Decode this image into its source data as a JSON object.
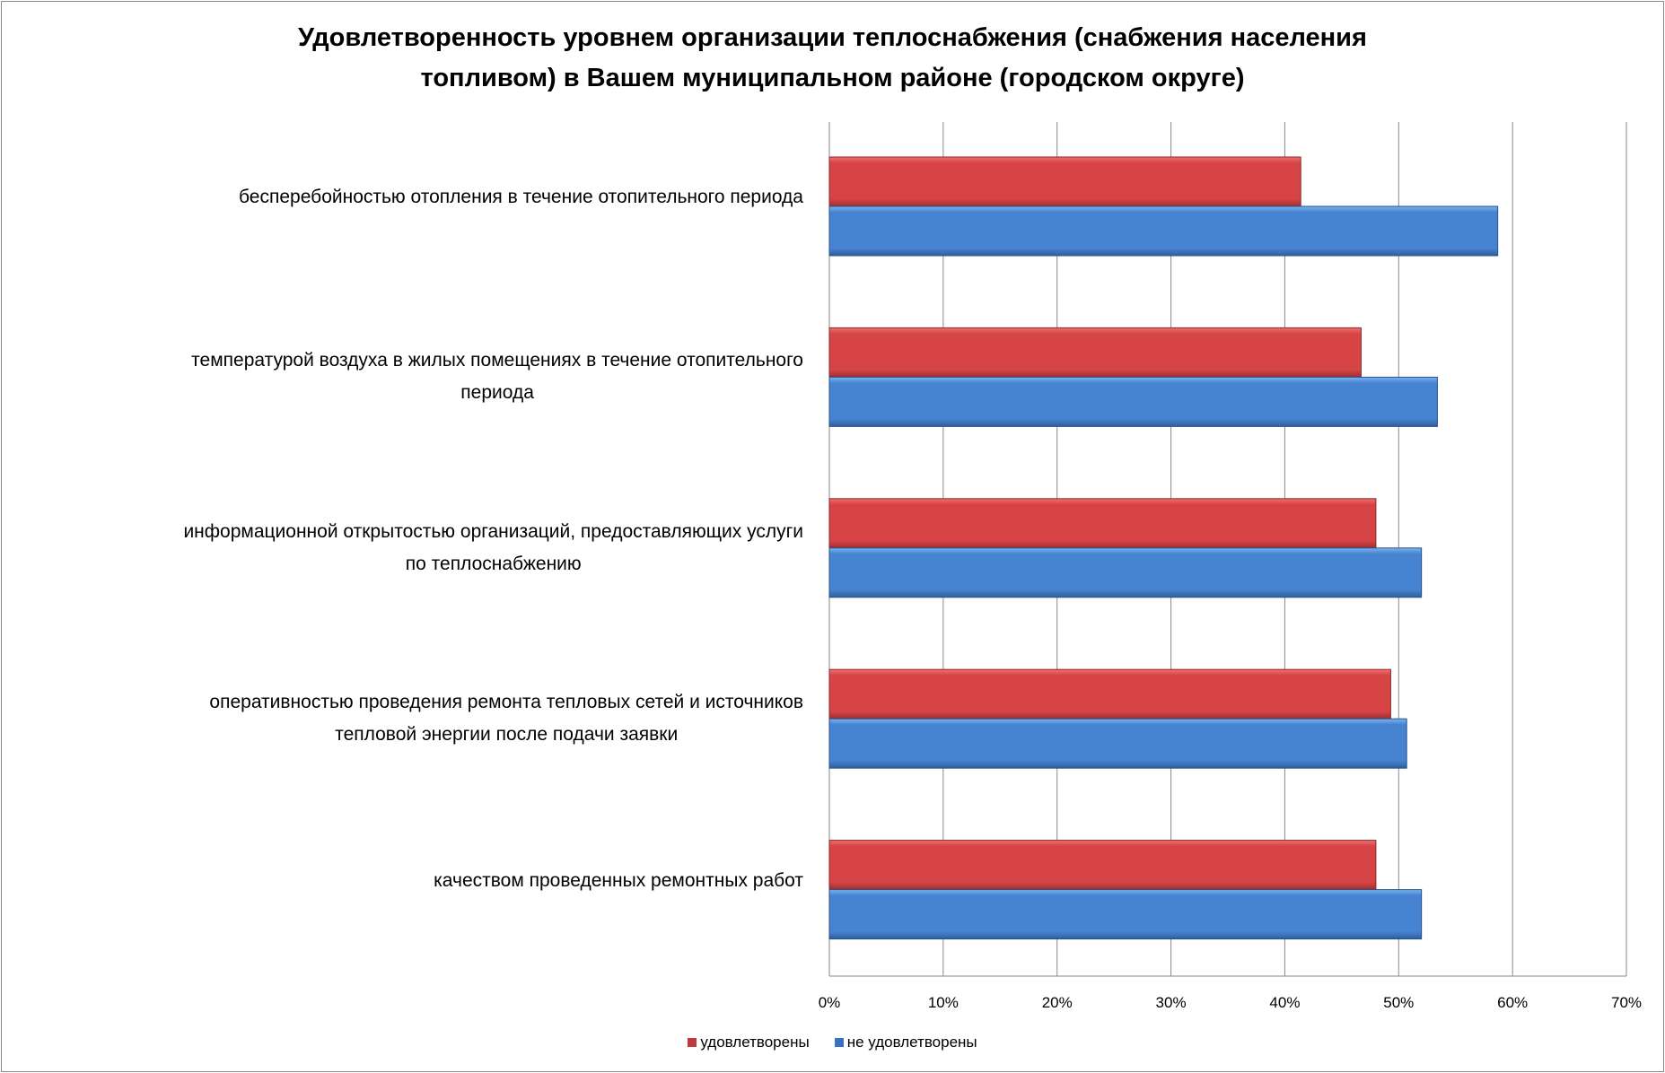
{
  "chart_data": {
    "type": "bar",
    "orientation": "horizontal",
    "title_lines": [
      "Удовлетворенность уровнем организации теплоснабжения (снабжения населения",
      "топливом) в Вашем муниципальном районе (городском округе)"
    ],
    "categories": [
      [
        "бесперебойностью  отопления в течение отопительного периода"
      ],
      [
        "температурой  воздуха в жилых помещениях в течение отопительного",
        "периода"
      ],
      [
        "информационной открытостью организаций, предоставляющих услуги",
        "по теплоснабжению"
      ],
      [
        "оперативностью проведения ремонта тепловых сетей и источников",
        "тепловой энергии после подачи заявки"
      ],
      [
        "качеством проведенных ремонтных работ"
      ]
    ],
    "series": [
      {
        "name": "удовлетворены",
        "color": "#c0393b",
        "values": [
          41.4,
          46.7,
          48.0,
          49.3,
          48.0
        ]
      },
      {
        "name": "не удовлетворены",
        "color": "#3a72c0",
        "values": [
          58.7,
          53.4,
          52.0,
          50.7,
          52.0
        ]
      }
    ],
    "xlim": [
      0,
      70
    ],
    "xticks": [
      "0%",
      "10%",
      "20%",
      "30%",
      "40%",
      "50%",
      "60%",
      "70%"
    ],
    "grid": true,
    "legend": "bottom",
    "unit": "%"
  }
}
